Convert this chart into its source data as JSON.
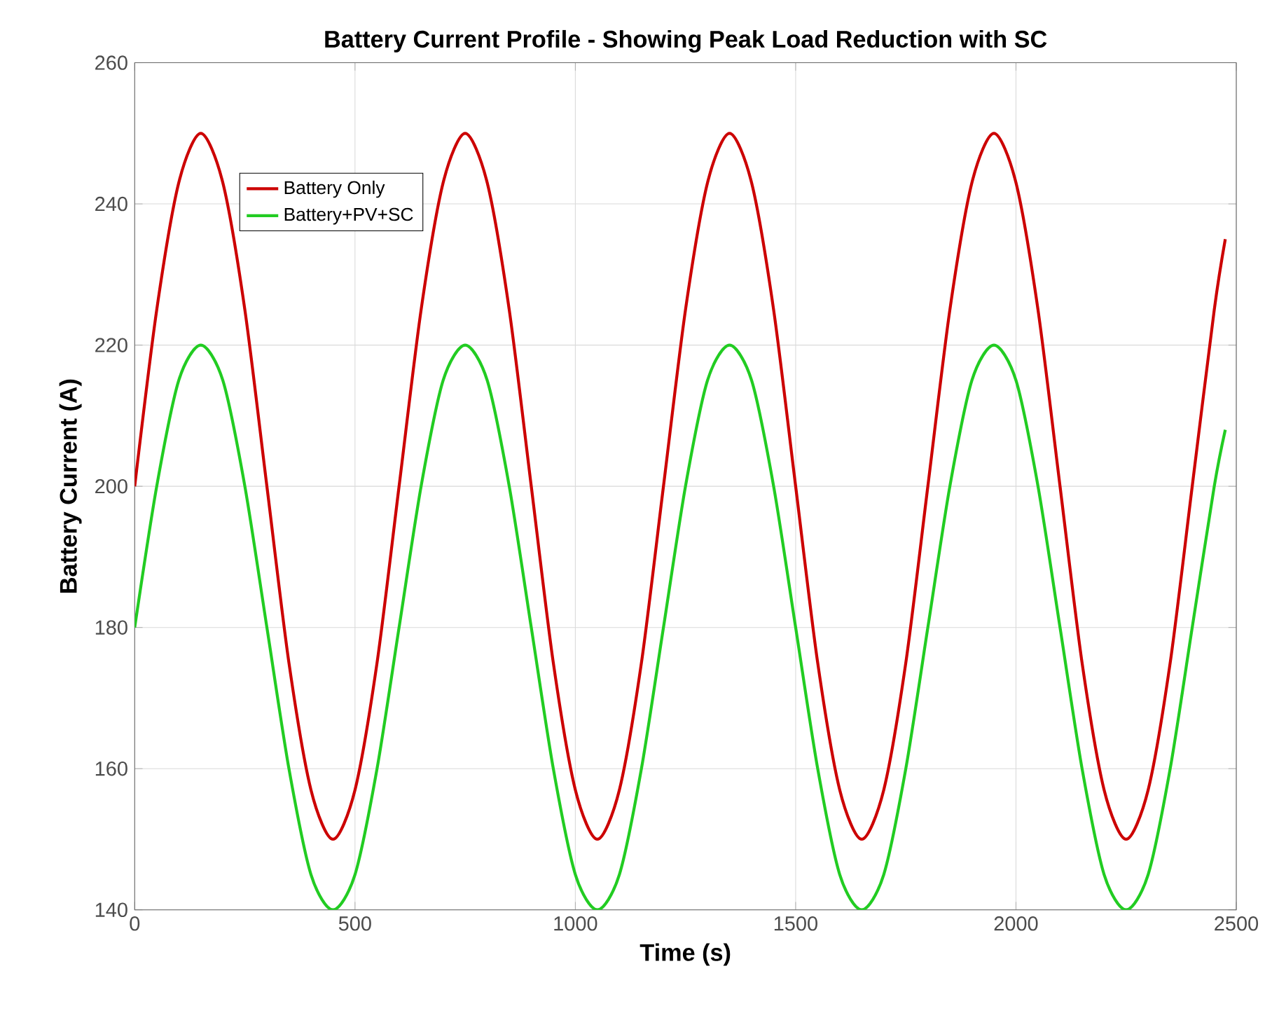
{
  "chart_data": {
    "type": "line",
    "title": "Battery Current Profile - Showing Peak Load Reduction with SC",
    "xlabel": "Time (s)",
    "ylabel": "Battery Current (A)",
    "x": [
      0,
      50,
      100,
      150,
      200,
      250,
      300,
      350,
      400,
      450,
      500,
      550,
      600,
      650,
      700,
      750,
      800,
      850,
      900,
      950,
      1000,
      1050,
      1100,
      1150,
      1200,
      1250,
      1300,
      1350,
      1400,
      1450,
      1500,
      1550,
      1600,
      1650,
      1700,
      1750,
      1800,
      1850,
      1900,
      1950,
      2000,
      2050,
      2100,
      2150,
      2200,
      2250,
      2300,
      2350,
      2400,
      2450,
      2475
    ],
    "series": [
      {
        "name": "Battery Only",
        "color": "#cc0000",
        "values": [
          200,
          225,
          243,
          250,
          243,
          225,
          200,
          175,
          157,
          150,
          157,
          175,
          200,
          225,
          243,
          250,
          243,
          225,
          200,
          175,
          157,
          150,
          157,
          175,
          200,
          225,
          243,
          250,
          243,
          225,
          200,
          175,
          157,
          150,
          157,
          175,
          200,
          225,
          243,
          250,
          243,
          225,
          200,
          175,
          157,
          150,
          157,
          175,
          200,
          225,
          235
        ]
      },
      {
        "name": "Battery+PV+SC",
        "color": "#22cc22",
        "values": [
          180,
          200,
          215,
          220,
          215,
          200,
          180,
          160,
          145,
          140,
          145,
          160,
          180,
          200,
          215,
          220,
          215,
          200,
          180,
          160,
          145,
          140,
          145,
          160,
          180,
          200,
          215,
          220,
          215,
          200,
          180,
          160,
          145,
          140,
          145,
          160,
          180,
          200,
          215,
          220,
          215,
          200,
          180,
          160,
          145,
          140,
          145,
          160,
          180,
          200,
          208
        ]
      }
    ],
    "xlim": [
      0,
      2500
    ],
    "xticks": [
      0,
      500,
      1000,
      1500,
      2000,
      2500
    ],
    "ylim": [
      140,
      260
    ],
    "yticks": [
      140,
      160,
      180,
      200,
      220,
      240,
      260
    ],
    "grid": true,
    "legend": "top left",
    "marker": "none",
    "line_style": "solid"
  }
}
